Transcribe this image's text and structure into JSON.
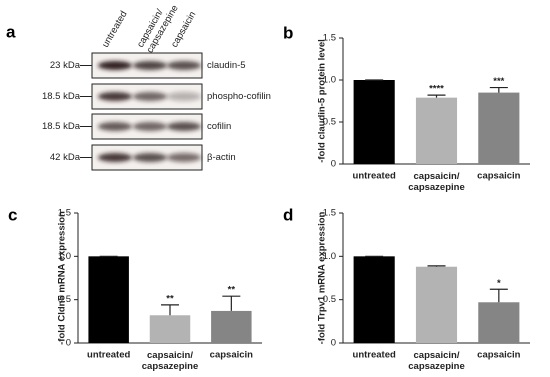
{
  "blot": {
    "panel": "a",
    "lanes": [
      "untreated",
      "capsaicin/\ncapsazepine",
      "capsaicin"
    ],
    "rows": [
      {
        "size": "23 kDa",
        "protein": "claudin-5"
      },
      {
        "size": "18.5 kDa",
        "protein": "phospho-cofilin"
      },
      {
        "size": "18.5 kDa",
        "protein": "cofilin"
      },
      {
        "size": "42 kDa",
        "protein": "β-actin"
      }
    ]
  },
  "chart_data": [
    {
      "type": "bar",
      "panel": "b",
      "ylabel": "-fold claudin-5 protein level",
      "categories": [
        "untreated",
        "capsaicin/\ncapsazepine",
        "capsaicin"
      ],
      "values": [
        1,
        0.79,
        0.85
      ],
      "errors": [
        0,
        0.03,
        0.06
      ],
      "annotations": [
        null,
        "****",
        "***"
      ],
      "colors": [
        "#000000",
        "#b3b3b3",
        "#858585"
      ],
      "ylim": [
        0,
        1.5
      ],
      "yticks": [
        0,
        0.5,
        {
          "value": 1,
          "label": "1.0"
        },
        1.5
      ]
    },
    {
      "type": "bar",
      "panel": "c",
      "ylabel": "-fold Cldn5 mRNA expression",
      "categories": [
        "untreated",
        "capsaicin/\ncapsazepine",
        "capsaicin"
      ],
      "values": [
        1,
        0.32,
        0.37
      ],
      "errors": [
        0,
        0.12,
        0.17
      ],
      "annotations": [
        null,
        "**",
        "**"
      ],
      "colors": [
        "#000000",
        "#b3b3b3",
        "#858585"
      ],
      "ylim": [
        0,
        1.5
      ],
      "yticks": [
        0,
        0.5,
        {
          "value": 1,
          "label": "1.0"
        },
        1.5
      ]
    },
    {
      "type": "bar",
      "panel": "d",
      "ylabel": "-fold Trpv1 mRNA expression",
      "categories": [
        "untreated",
        "capsaicin/\ncapsazepine",
        "capsaicin"
      ],
      "values": [
        1,
        0.88,
        0.47
      ],
      "errors": [
        0,
        0.01,
        0.15
      ],
      "annotations": [
        null,
        null,
        "*"
      ],
      "colors": [
        "#000000",
        "#b3b3b3",
        "#858585"
      ],
      "ylim": [
        0,
        1.5
      ],
      "yticks": [
        0,
        0.5,
        {
          "value": 1,
          "label": "1.0"
        },
        1.5
      ]
    }
  ]
}
